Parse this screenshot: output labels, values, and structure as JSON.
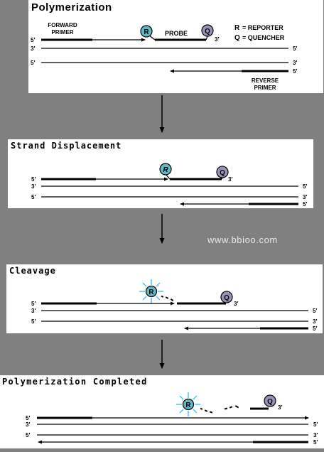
{
  "panels": [
    {
      "title": "Polymerization",
      "forward_primer_label": [
        "FORWARD",
        "PRIMER"
      ],
      "probe_label": "PROBE",
      "reverse_primer_label": [
        "REVERSE",
        "PRIMER"
      ],
      "legend": [
        {
          "key": "R",
          "text": "= REPORTER"
        },
        {
          "key": "Q",
          "text": "= QUENCHER"
        }
      ]
    },
    {
      "title": "Strand Displacement"
    },
    {
      "title": "Cleavage"
    },
    {
      "title": "Polymerization Completed"
    }
  ],
  "strand_ends": {
    "five": "5′",
    "three": "3′"
  },
  "reporter_letter": "R",
  "quencher_letter": "Q",
  "watermark": "www.bbioo.com",
  "colors": {
    "background": "#808080",
    "panel": "#ffffff",
    "strand": "#000000",
    "reporter_fill": "#5fb8c4",
    "quencher_fill": "#9a93b8",
    "glow": "#4fc3f7",
    "watermark": "#e8e8e8"
  }
}
